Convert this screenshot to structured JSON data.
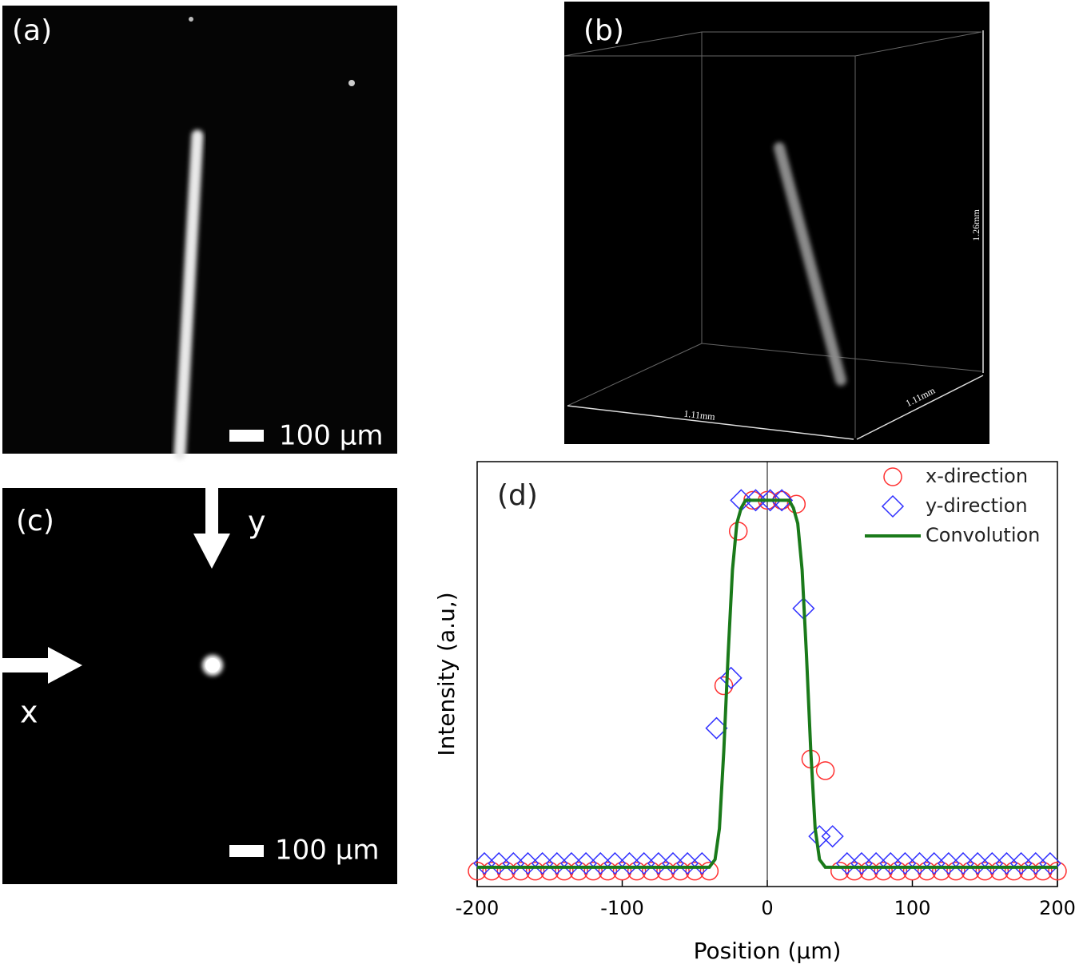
{
  "panels": {
    "a": {
      "label": "(a)",
      "scale_bar": "100 μm"
    },
    "b": {
      "label": "(b)",
      "height": "1.26mm",
      "width": "1.11mm",
      "depth": "1.11mm"
    },
    "c": {
      "label": "(c)",
      "arrow_y": "y",
      "arrow_x": "x",
      "scale_bar": "100 μm"
    }
  },
  "chart_data": {
    "type": "scatter",
    "label": "(d)",
    "x_label": "Position (μm)",
    "y_label": "Intensity (a.u,)",
    "xlim": [
      -200,
      200
    ],
    "xticks": [
      -200,
      -100,
      0,
      100,
      200
    ],
    "ylim": [
      0,
      1.1
    ],
    "legend": "top-right",
    "series": [
      {
        "name": "x-direction",
        "marker": "circle",
        "color": "#ff3030",
        "x": [
          -200,
          -190,
          -180,
          -170,
          -160,
          -150,
          -140,
          -130,
          -120,
          -110,
          -100,
          -90,
          -80,
          -70,
          -60,
          -50,
          -40,
          -30,
          -20,
          -10,
          0,
          10,
          20,
          30,
          40,
          50,
          60,
          70,
          80,
          90,
          100,
          110,
          120,
          130,
          140,
          150,
          160,
          170,
          180,
          190,
          200
        ],
        "values": [
          0.04,
          0.04,
          0.04,
          0.04,
          0.04,
          0.04,
          0.04,
          0.04,
          0.04,
          0.04,
          0.04,
          0.04,
          0.04,
          0.04,
          0.04,
          0.04,
          0.04,
          0.52,
          0.92,
          1.0,
          1.0,
          1.0,
          0.99,
          0.33,
          0.3,
          0.04,
          0.04,
          0.04,
          0.04,
          0.04,
          0.04,
          0.04,
          0.04,
          0.04,
          0.04,
          0.04,
          0.04,
          0.04,
          0.04,
          0.04,
          0.04
        ]
      },
      {
        "name": "y-direction",
        "marker": "diamond",
        "color": "#3030ff",
        "x": [
          -195,
          -185,
          -175,
          -165,
          -155,
          -145,
          -135,
          -125,
          -115,
          -105,
          -95,
          -85,
          -75,
          -65,
          -55,
          -45,
          -35,
          -25,
          -18,
          -8,
          2,
          10,
          25,
          36,
          45,
          55,
          65,
          75,
          85,
          95,
          105,
          115,
          125,
          135,
          145,
          155,
          165,
          175,
          185,
          195
        ],
        "values": [
          0.06,
          0.06,
          0.06,
          0.06,
          0.06,
          0.06,
          0.06,
          0.06,
          0.06,
          0.06,
          0.06,
          0.06,
          0.06,
          0.06,
          0.06,
          0.06,
          0.41,
          0.54,
          1.0,
          1.0,
          1.0,
          1.0,
          0.72,
          0.13,
          0.13,
          0.06,
          0.06,
          0.06,
          0.06,
          0.06,
          0.06,
          0.06,
          0.06,
          0.06,
          0.06,
          0.06,
          0.06,
          0.06,
          0.06,
          0.06
        ]
      },
      {
        "name": "Convolution",
        "marker": "line",
        "color": "#1a7a1a",
        "x": [
          -200,
          -40,
          -36,
          -33,
          -30,
          -27,
          -24,
          -21,
          -18,
          -15,
          -10,
          0,
          10,
          15,
          18,
          21,
          24,
          27,
          30,
          33,
          36,
          40,
          200
        ],
        "values": [
          0.05,
          0.05,
          0.07,
          0.15,
          0.35,
          0.6,
          0.82,
          0.94,
          0.98,
          1.0,
          1.0,
          1.0,
          1.0,
          1.0,
          0.98,
          0.94,
          0.82,
          0.6,
          0.35,
          0.15,
          0.07,
          0.05,
          0.05
        ]
      }
    ]
  }
}
